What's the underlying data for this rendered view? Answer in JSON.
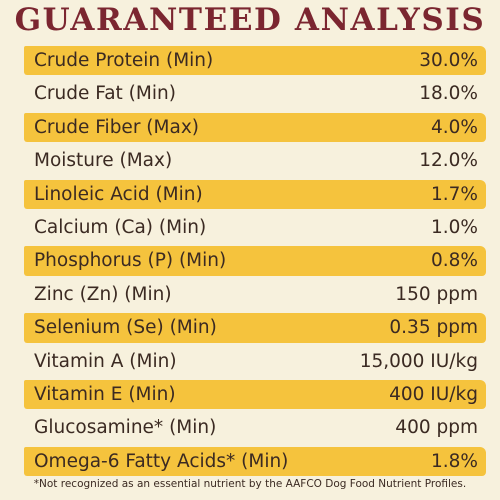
{
  "title": "GUARANTEED ANALYSIS",
  "rows": [
    {
      "label": "Crude Protein (Min)",
      "value": "30.0%",
      "highlight": true
    },
    {
      "label": "Crude Fat (Min)",
      "value": "18.0%",
      "highlight": false
    },
    {
      "label": "Crude Fiber (Max)",
      "value": "4.0%",
      "highlight": true
    },
    {
      "label": "Moisture (Max)",
      "value": "12.0%",
      "highlight": false
    },
    {
      "label": "Linoleic Acid (Min)",
      "value": "1.7%",
      "highlight": true
    },
    {
      "label": "Calcium (Ca) (Min)",
      "value": "1.0%",
      "highlight": false
    },
    {
      "label": "Phosphorus (P) (Min)",
      "value": "0.8%",
      "highlight": true
    },
    {
      "label": "Zinc (Zn) (Min)",
      "value": "150 ppm",
      "highlight": false
    },
    {
      "label": "Selenium (Se) (Min)",
      "value": "0.35 ppm",
      "highlight": true
    },
    {
      "label": "Vitamin A (Min)",
      "value": "15,000 IU/kg",
      "highlight": false
    },
    {
      "label": "Vitamin E (Min)",
      "value": "400 IU/kg",
      "highlight": true
    },
    {
      "label": "Glucosamine* (Min)",
      "value": "400 ppm",
      "highlight": false
    },
    {
      "label": "Omega-6 Fatty Acids* (Min)",
      "value": "1.8%",
      "highlight": true
    }
  ],
  "footnote": "*Not recognized as an essential nutrient by the AAFCO Dog Food Nutrient Profiles.",
  "colors": {
    "background": "#f7f1dd",
    "title": "#7b2630",
    "band": "#f5c33d",
    "text": "#3b2a22"
  }
}
